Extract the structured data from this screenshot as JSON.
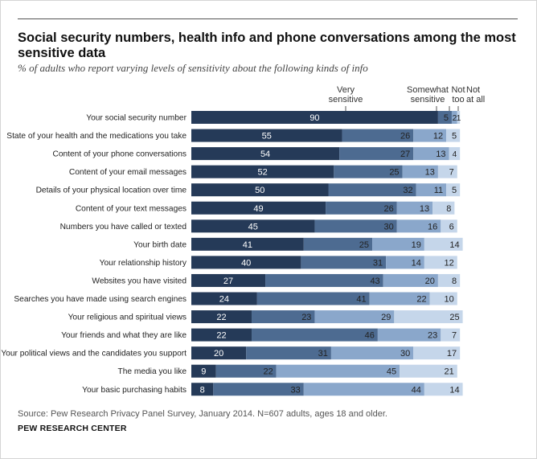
{
  "title": "Social security numbers, health info and phone conversations among the most sensitive data",
  "subtitle": "% of adults who report varying levels of sensitivity about the following kinds of info",
  "legend": [
    {
      "label": "Very\nsensitive"
    },
    {
      "label": "Somewhat\nsensitive"
    },
    {
      "label": "Not\ntoo"
    },
    {
      "label": "Not\nat all"
    }
  ],
  "colors": {
    "very": "#253a58",
    "somewhat": "#4d6b91",
    "not_too": "#8aa7cb",
    "not_at_all": "#c5d6ea",
    "text_light": "#ffffff",
    "text_dark": "#222222"
  },
  "chart_data": {
    "type": "bar",
    "orientation": "horizontal",
    "stacked": true,
    "categories": [
      "Your social security number",
      "State of your health and the medications you take",
      "Content of your phone conversations",
      "Content of your email messages",
      "Details of your physical location over time",
      "Content of your text messages",
      "Numbers you have called or texted",
      "Your birth date",
      "Your relationship history",
      "Websites you have visited",
      "Searches you have made using search engines",
      "Your religious and spiritual views",
      "Your friends and what they are like",
      "Your political views and the candidates you support",
      "The media you like",
      "Your basic purchasing habits"
    ],
    "series": [
      {
        "name": "Very sensitive",
        "values": [
          90,
          55,
          54,
          52,
          50,
          49,
          45,
          41,
          40,
          27,
          24,
          22,
          22,
          20,
          9,
          8
        ]
      },
      {
        "name": "Somewhat sensitive",
        "values": [
          5,
          26,
          27,
          25,
          32,
          26,
          30,
          25,
          31,
          43,
          41,
          23,
          46,
          31,
          22,
          33
        ]
      },
      {
        "name": "Not too",
        "values": [
          2,
          12,
          13,
          13,
          11,
          13,
          16,
          19,
          14,
          20,
          22,
          29,
          23,
          30,
          45,
          44
        ]
      },
      {
        "name": "Not at all",
        "values": [
          1,
          5,
          4,
          7,
          5,
          8,
          6,
          14,
          12,
          8,
          10,
          25,
          7,
          17,
          21,
          14
        ]
      }
    ],
    "xlim": [
      0,
      100
    ],
    "grid": false,
    "legend_position": "top"
  },
  "source": "Source: Pew Research Privacy Panel Survey, January 2014. N=607 adults, ages 18 and older.",
  "org": "PEW RESEARCH CENTER"
}
